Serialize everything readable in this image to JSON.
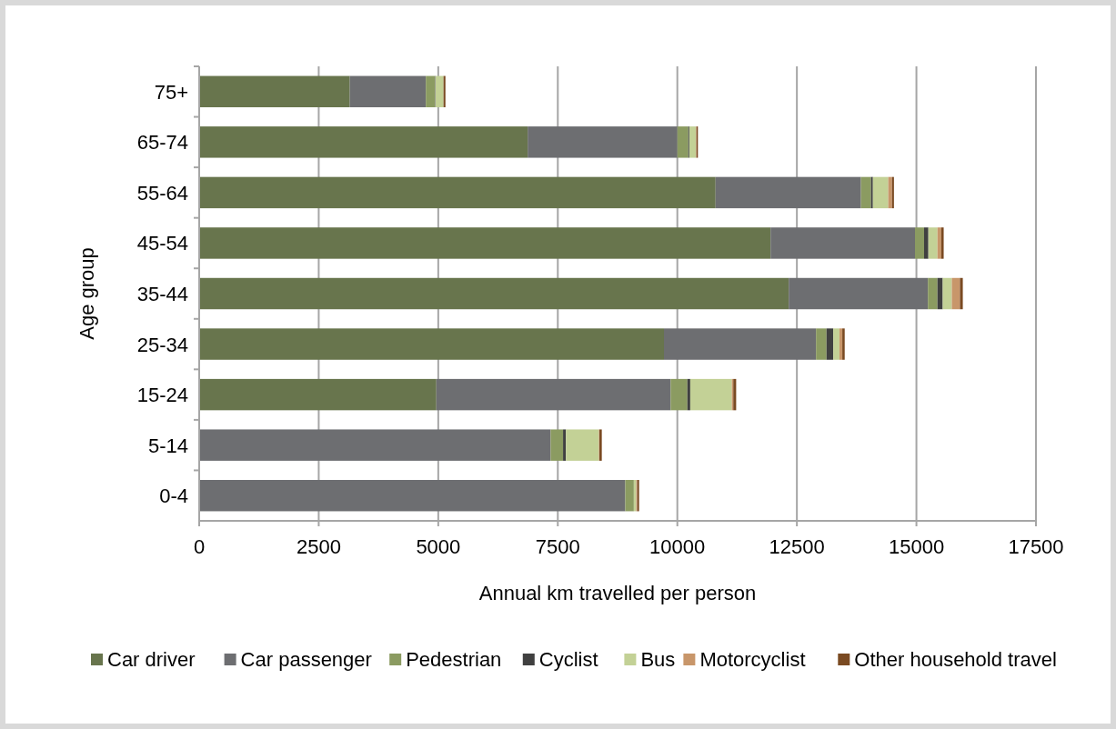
{
  "chart_data": {
    "type": "bar",
    "orientation": "horizontal",
    "stacked": true,
    "xlabel": "Annual km travelled per person",
    "ylabel": "Age group",
    "categories": [
      "75+",
      "65-74",
      "55-64",
      "45-54",
      "35-44",
      "25-34",
      "15-24",
      "5-14",
      "0-4"
    ],
    "series": [
      {
        "name": "Car driver",
        "color": "#68754d",
        "values": [
          3150,
          6870,
          10800,
          11950,
          12330,
          9720,
          4960,
          0,
          0
        ]
      },
      {
        "name": "Car passenger",
        "color": "#6d6e71",
        "values": [
          1590,
          3130,
          3040,
          3020,
          2910,
          3180,
          4900,
          7350,
          8910
        ]
      },
      {
        "name": "Pedestrian",
        "color": "#8b9b61",
        "values": [
          190,
          230,
          210,
          190,
          200,
          220,
          350,
          260,
          180
        ]
      },
      {
        "name": "Cyclist",
        "color": "#404040",
        "values": [
          10,
          20,
          40,
          90,
          110,
          140,
          60,
          60,
          0
        ]
      },
      {
        "name": "Bus",
        "color": "#c3d196",
        "values": [
          170,
          140,
          320,
          190,
          190,
          130,
          870,
          690,
          50
        ]
      },
      {
        "name": "Motorcyclist",
        "color": "#c8966a",
        "values": [
          null,
          10,
          80,
          80,
          170,
          60,
          30,
          10,
          20
        ]
      },
      {
        "name": "Other household travel",
        "color": "#7a4a22",
        "values": [
          40,
          30,
          40,
          50,
          60,
          50,
          60,
          50,
          40
        ]
      }
    ],
    "xlim": [
      0,
      17500
    ],
    "xticks": [
      0,
      2500,
      5000,
      7500,
      10000,
      12500,
      15000,
      17500
    ],
    "grid": "x",
    "legend": "bottom"
  }
}
